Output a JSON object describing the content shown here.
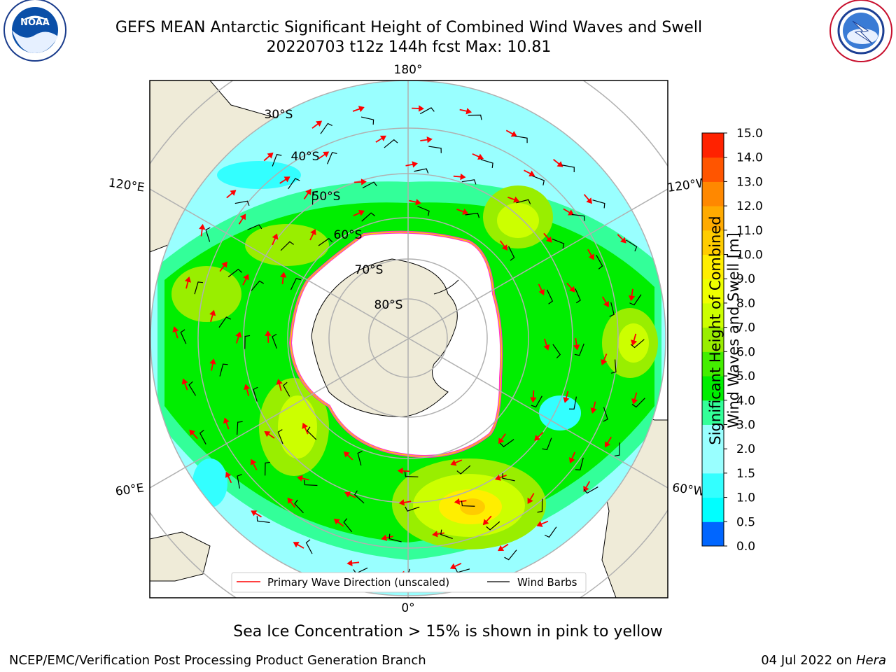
{
  "header": {
    "title_line1": "GEFS MEAN Antarctic Significant Height of Combined Wind Waves and Swell",
    "title_line2": "20220703 t12z 144h fcst   Max: 10.81"
  },
  "logos": {
    "left": {
      "name": "NOAA",
      "text": "NOAA",
      "ring_text": "NATIONAL OCEANIC AND ATMOSPHERIC ADMINISTRATION · U.S. DEPARTMENT OF COMMERCE"
    },
    "right": {
      "name": "National Weather Service",
      "ring_text": "NATIONAL WEATHER SERVICE"
    }
  },
  "map": {
    "projection": "south polar stereographic",
    "longitude_labels": {
      "top": "180°",
      "bottom": "0°",
      "upper_left": "120°E",
      "lower_left": "60°E",
      "upper_right": "120°W",
      "lower_right": "60°W"
    },
    "latitude_labels": [
      "30°S",
      "40°S",
      "50°S",
      "60°S",
      "70°S",
      "80°S"
    ],
    "colors": {
      "land": "#efebd8",
      "ice": "#ffffff",
      "ice_edge": [
        "#ff33cc",
        "#ffcc00"
      ],
      "graticule": "#b0b0b0",
      "arrows": "#ff0000",
      "barbs": "#000000"
    },
    "legend": {
      "wave_direction": "Primary Wave Direction (unscaled)",
      "wind_barbs": "Wind Barbs"
    }
  },
  "colorbar": {
    "title_line1": "Significant Height of Combined",
    "title_line2": "Wind Waves and Swell [m]",
    "levels": [
      0.0,
      0.5,
      1.0,
      1.5,
      2.0,
      3.0,
      4.0,
      5.0,
      6.0,
      7.0,
      8.0,
      9.0,
      10.0,
      11.0,
      12.0,
      13.0,
      14.0,
      15.0
    ],
    "tick_labels": [
      "0.0",
      "0.5",
      "1.0",
      "1.5",
      "2.0",
      "3.0",
      "4.0",
      "5.0",
      "6.0",
      "7.0",
      "8.0",
      "9.0",
      "10.0",
      "11.0",
      "12.0",
      "13.0",
      "14.0",
      "15.0"
    ],
    "colors": [
      "#0000ff",
      "#0066ff",
      "#00ffff",
      "#33ffff",
      "#99ffff",
      "#99ffff",
      "#33ff99",
      "#00ee00",
      "#44ee00",
      "#99ee00",
      "#ccff00",
      "#eeff00",
      "#ffee00",
      "#ffcc00",
      "#ffaa00",
      "#ff8800",
      "#ff5500",
      "#ff2200",
      "#ff0000"
    ]
  },
  "subcaption": "Sea Ice Concentration > 15% is shown in pink to yellow",
  "footer": {
    "left": "NCEP/EMC/Verification Post Processing Product Generation Branch",
    "right_date": "04 Jul 2022 on ",
    "right_host": "Hera"
  }
}
